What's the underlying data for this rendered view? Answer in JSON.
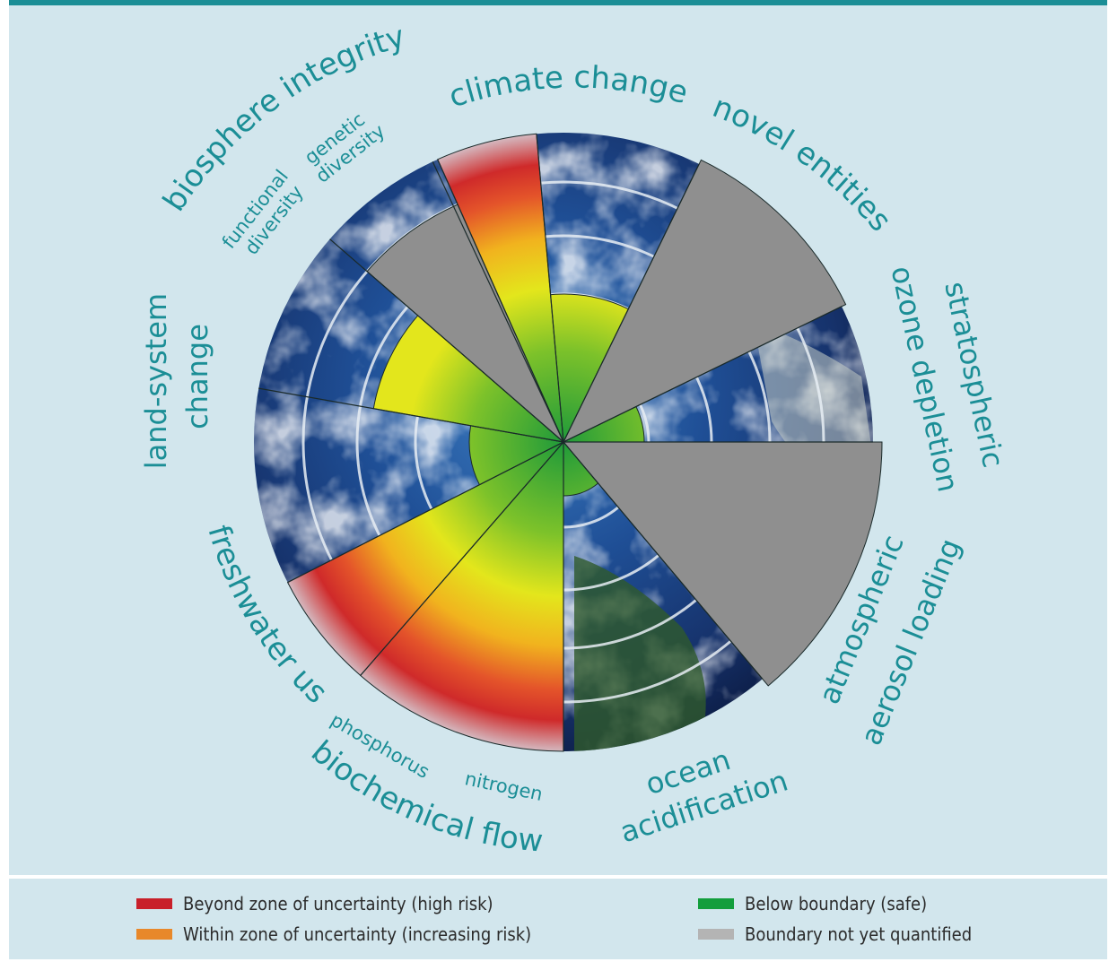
{
  "labels": {
    "biosphere_integrity": "biosphere integrity",
    "genetic_diversity": [
      "genetic",
      "diversity"
    ],
    "functional_diversity": [
      "functional",
      "diversity"
    ],
    "climate_change": "climate change",
    "novel_entities": "novel entities",
    "stratospheric_ozone": [
      "stratospheric",
      "ozone depletion"
    ],
    "aerosol": [
      "atmospheric",
      "aerosol loading"
    ],
    "ocean": [
      "ocean",
      "acidification"
    ],
    "biochemical_flows": "biochemical flows",
    "phosphorus": "phosphorus",
    "nitrogen": "nitrogen",
    "freshwater": "freshwater use",
    "land_system": [
      "land-system",
      "change"
    ]
  },
  "legend": [
    {
      "label": "Beyond zone of uncertainty (high risk)",
      "color": "#c8202a"
    },
    {
      "label": "Within zone of uncertainty (increasing risk)",
      "color": "#e8882a"
    },
    {
      "label": "Below boundary (safe)",
      "color": "#139e3c"
    },
    {
      "label": "Boundary not yet quantified",
      "color": "#b4b4b4"
    }
  ],
  "colors": {
    "accent": "#1b8e96",
    "panel": "#d2e6ed",
    "high_risk": "#c8202a",
    "increasing_risk": "#e8882a",
    "safe": "#139e3c",
    "not_quantified": "#b4b4b4"
  }
}
